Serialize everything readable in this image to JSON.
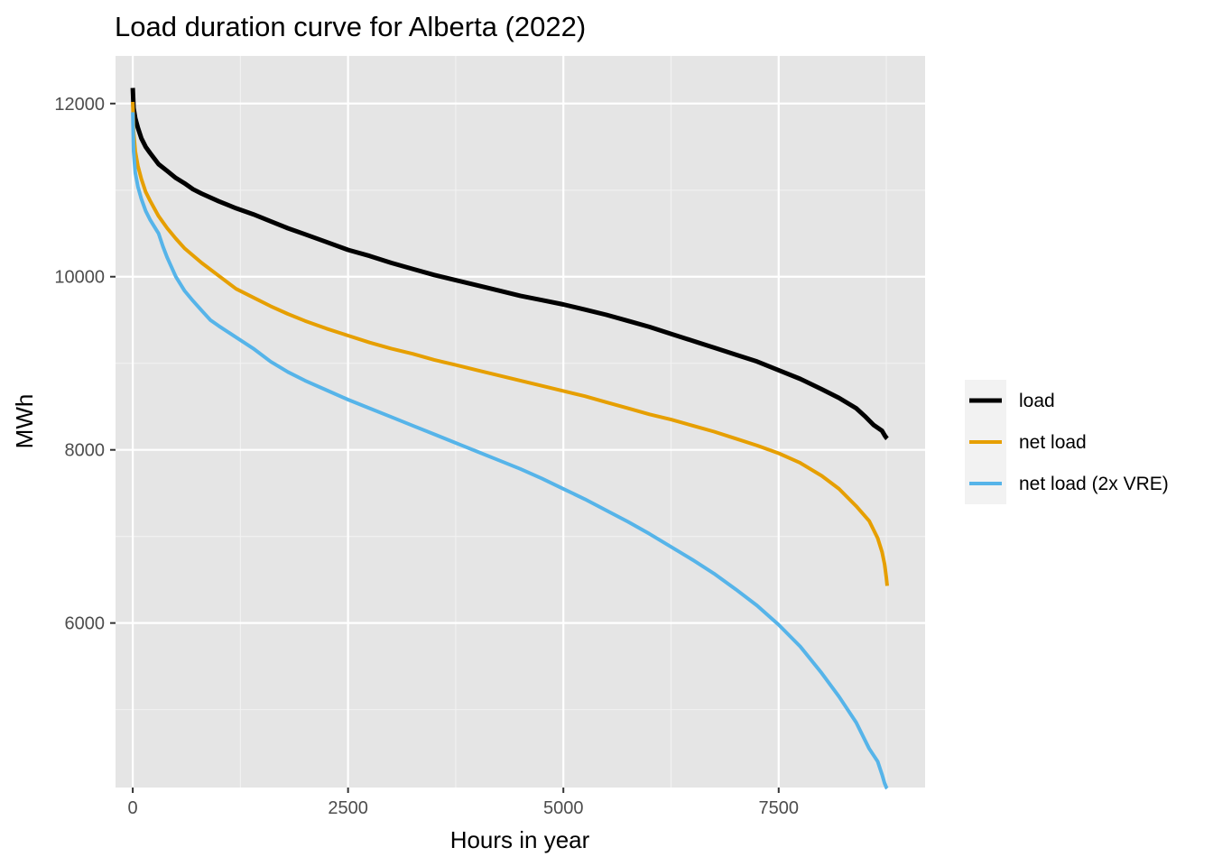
{
  "chart_data": {
    "type": "line",
    "title": "Load duration curve for Alberta (2022)",
    "xlabel": "Hours in year",
    "ylabel": "MWh",
    "xlim": [
      -200,
      9200
    ],
    "ylim": [
      4100,
      12550
    ],
    "x_ticks": [
      {
        "value": 0,
        "label": "0"
      },
      {
        "value": 2500,
        "label": "2500"
      },
      {
        "value": 5000,
        "label": "5000"
      },
      {
        "value": 7500,
        "label": "7500"
      }
    ],
    "y_ticks": [
      {
        "value": 6000,
        "label": "6000"
      },
      {
        "value": 8000,
        "label": "8000"
      },
      {
        "value": 10000,
        "label": "10000"
      },
      {
        "value": 12000,
        "label": "12000"
      }
    ],
    "grid": true,
    "legend_position": "right",
    "series": [
      {
        "name": "load",
        "color": "#000000",
        "x": [
          0,
          10,
          30,
          60,
          100,
          150,
          200,
          300,
          400,
          500,
          600,
          700,
          800,
          1000,
          1200,
          1400,
          1600,
          1800,
          2000,
          2250,
          2500,
          2750,
          3000,
          3250,
          3500,
          3750,
          4000,
          4250,
          4500,
          4750,
          5000,
          5250,
          5500,
          5750,
          6000,
          6250,
          6500,
          6750,
          7000,
          7250,
          7500,
          7750,
          8000,
          8200,
          8400,
          8500,
          8600,
          8700,
          8730,
          8750,
          8760
        ],
        "y": [
          12180,
          11950,
          11830,
          11720,
          11600,
          11500,
          11430,
          11300,
          11220,
          11140,
          11080,
          11010,
          10960,
          10870,
          10790,
          10720,
          10640,
          10560,
          10490,
          10400,
          10310,
          10240,
          10160,
          10090,
          10020,
          9960,
          9900,
          9840,
          9780,
          9730,
          9680,
          9620,
          9560,
          9490,
          9420,
          9340,
          9260,
          9180,
          9100,
          9020,
          8920,
          8820,
          8700,
          8600,
          8480,
          8390,
          8290,
          8220,
          8170,
          8140,
          8130
        ]
      },
      {
        "name": "net load",
        "color": "#E69F00",
        "x": [
          0,
          10,
          30,
          60,
          100,
          150,
          200,
          300,
          400,
          500,
          600,
          800,
          1000,
          1200,
          1400,
          1600,
          1800,
          2000,
          2250,
          2500,
          2750,
          3000,
          3250,
          3500,
          3750,
          4000,
          4250,
          4500,
          4750,
          5000,
          5250,
          5500,
          5750,
          6000,
          6250,
          6500,
          6750,
          7000,
          7250,
          7500,
          7750,
          8000,
          8200,
          8400,
          8550,
          8650,
          8700,
          8730,
          8750,
          8760
        ],
        "y": [
          12020,
          11680,
          11450,
          11280,
          11130,
          10980,
          10880,
          10700,
          10560,
          10440,
          10330,
          10160,
          10010,
          9860,
          9760,
          9660,
          9570,
          9490,
          9400,
          9320,
          9240,
          9170,
          9110,
          9040,
          8980,
          8920,
          8860,
          8800,
          8740,
          8680,
          8620,
          8550,
          8480,
          8410,
          8350,
          8280,
          8210,
          8130,
          8050,
          7960,
          7850,
          7700,
          7550,
          7350,
          7180,
          6980,
          6820,
          6680,
          6520,
          6430
        ]
      },
      {
        "name": "net load (2x VRE)",
        "color": "#56B4E9",
        "x": [
          0,
          10,
          30,
          60,
          100,
          150,
          200,
          250,
          300,
          350,
          400,
          500,
          600,
          700,
          800,
          900,
          1000,
          1200,
          1400,
          1600,
          1800,
          2000,
          2250,
          2500,
          2750,
          3000,
          3250,
          3500,
          3750,
          4000,
          4250,
          4500,
          4750,
          5000,
          5250,
          5500,
          5750,
          6000,
          6250,
          6500,
          6750,
          7000,
          7250,
          7500,
          7750,
          8000,
          8200,
          8400,
          8550,
          8650,
          8700,
          8730,
          8750,
          8760
        ],
        "y": [
          11900,
          11450,
          11200,
          11040,
          10900,
          10760,
          10660,
          10580,
          10500,
          10350,
          10220,
          10000,
          9840,
          9720,
          9610,
          9500,
          9430,
          9300,
          9170,
          9020,
          8900,
          8800,
          8690,
          8580,
          8480,
          8380,
          8280,
          8180,
          8080,
          7980,
          7880,
          7780,
          7670,
          7550,
          7430,
          7300,
          7170,
          7030,
          6880,
          6730,
          6570,
          6390,
          6200,
          5980,
          5730,
          5420,
          5150,
          4850,
          4550,
          4400,
          4250,
          4150,
          4100,
          4090
        ]
      }
    ]
  }
}
